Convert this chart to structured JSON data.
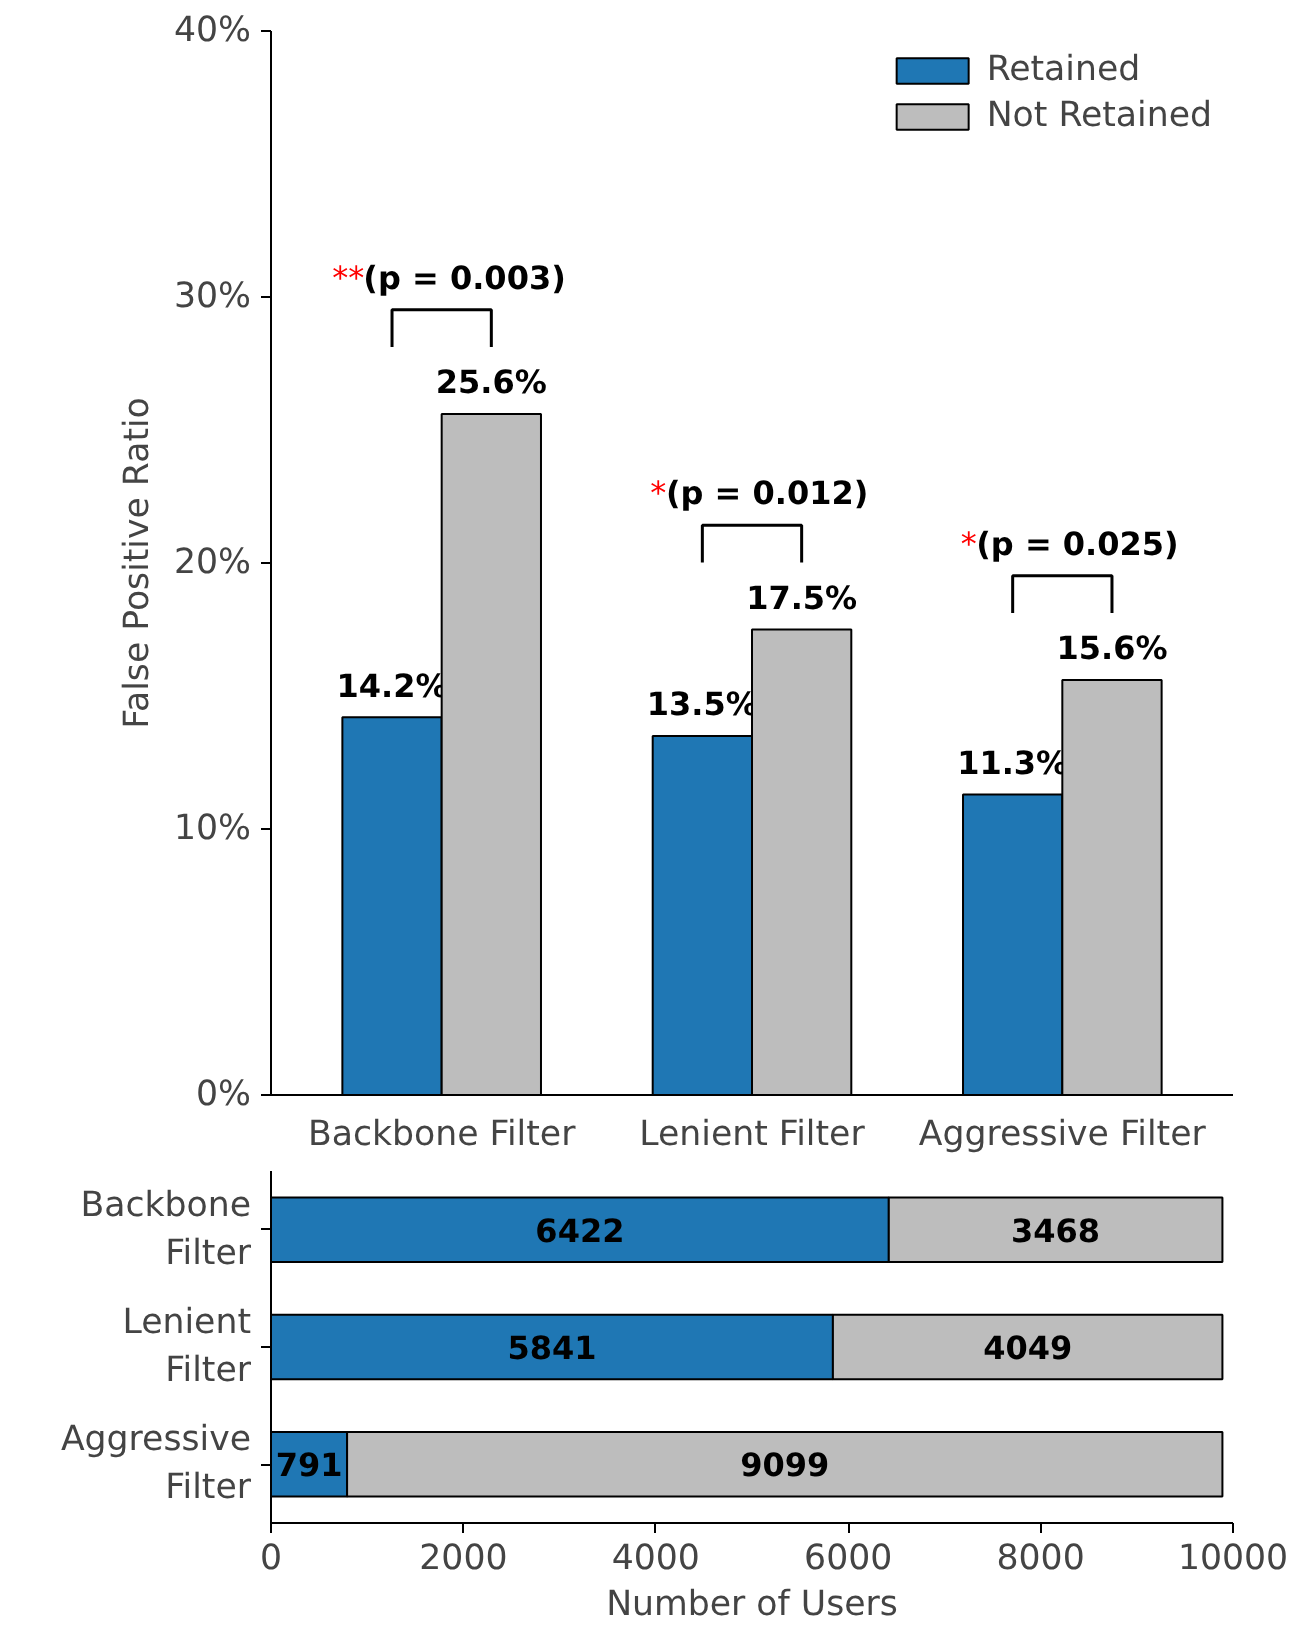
{
  "chart_data": [
    {
      "type": "bar",
      "ylabel": "False Positive Ratio",
      "categories": [
        "Backbone Filter",
        "Lenient Filter",
        "Aggressive Filter"
      ],
      "series": [
        {
          "name": "Retained",
          "color": "#1f77b4",
          "values": [
            14.2,
            13.5,
            11.3
          ],
          "value_labels": [
            "14.2%",
            "13.5%",
            "11.3%"
          ]
        },
        {
          "name": "Not Retained",
          "color": "#bdbdbd",
          "values": [
            25.6,
            17.5,
            15.6
          ],
          "value_labels": [
            "25.6%",
            "17.5%",
            "15.6%"
          ]
        }
      ],
      "ylim": [
        0,
        40
      ],
      "yticks": [
        {
          "value": 0,
          "label": "0%"
        },
        {
          "value": 10,
          "label": "10%"
        },
        {
          "value": 20,
          "label": "20%"
        },
        {
          "value": 30,
          "label": "30%"
        },
        {
          "value": 40,
          "label": "40%"
        }
      ],
      "annotations": [
        "**(p = 0.003)",
        "*(p = 0.012)",
        "*(p = 0.025)"
      ],
      "legend": "top right",
      "grid": false
    },
    {
      "type": "bar",
      "orientation": "horizontal",
      "stacked": true,
      "xlabel": "Number of Users",
      "categories": [
        "Backbone Filter",
        "Lenient Filter",
        "Aggressive Filter"
      ],
      "series": [
        {
          "color": "#1f77b4",
          "values": [
            6422,
            5841,
            791
          ]
        },
        {
          "color": "#bdbdbd",
          "values": [
            3468,
            4049,
            9099
          ]
        }
      ],
      "xlim": [
        0,
        10000
      ],
      "xticks": [
        0,
        2000,
        4000,
        6000,
        8000,
        10000
      ],
      "data_labels": true,
      "grid": false
    }
  ]
}
